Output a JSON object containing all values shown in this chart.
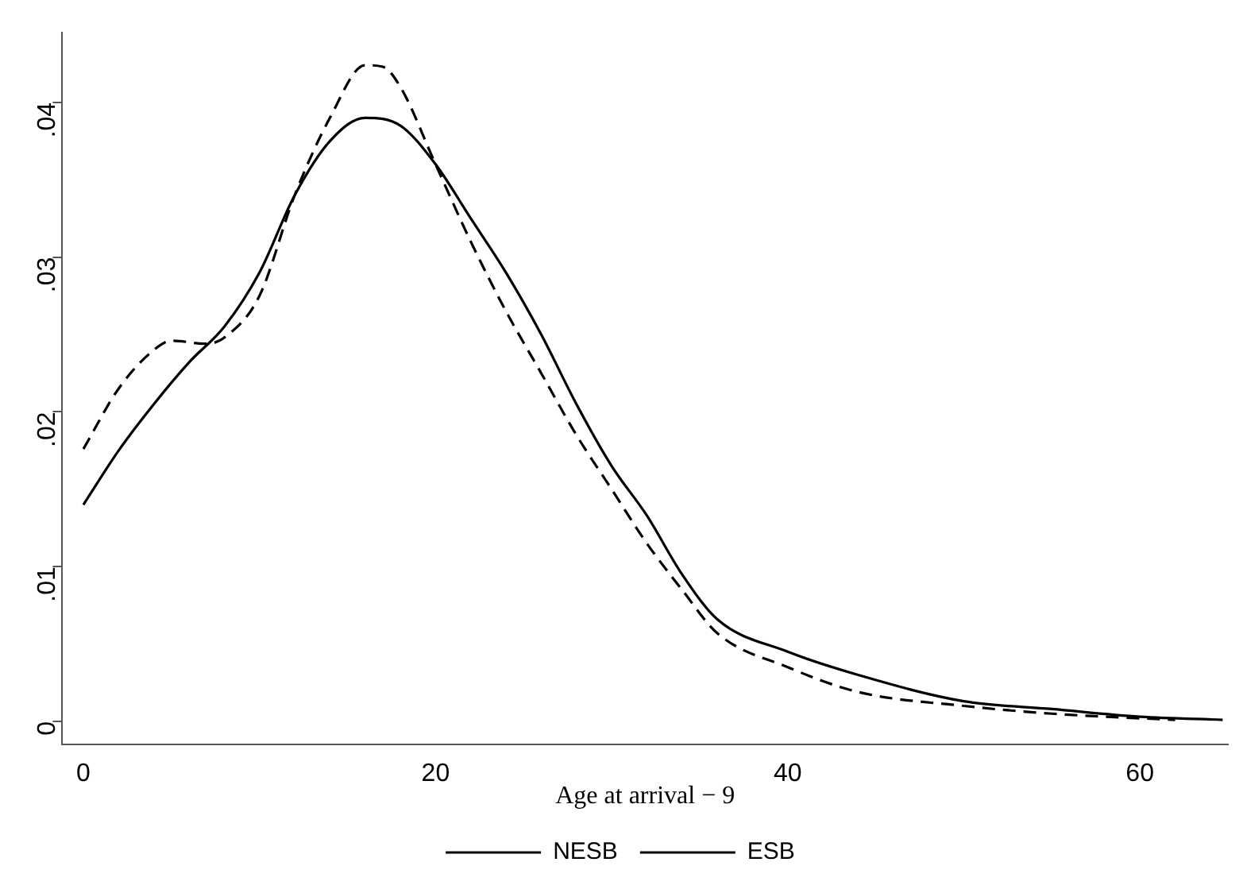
{
  "chart_data": {
    "type": "line",
    "xlabel": "Age at arrival − 9",
    "xlim": [
      -1.2,
      65
    ],
    "xticks": [
      0,
      20,
      40,
      60
    ],
    "ylim": [
      -0.0015,
      0.0445
    ],
    "yticks": [
      {
        "value": 0,
        "label": "0"
      },
      {
        "value": 0.01,
        "label": ".01"
      },
      {
        "value": 0.02,
        "label": ".02"
      },
      {
        "value": 0.03,
        "label": ".03"
      },
      {
        "value": 0.04,
        "label": ".04"
      }
    ],
    "grid": false,
    "legend": "bottom",
    "marker": "none",
    "series": [
      {
        "name": "NESB",
        "color": "#000000",
        "line_style": "solid",
        "x": [
          0,
          2,
          4,
          6,
          8,
          10,
          12,
          14,
          16,
          18,
          20,
          22,
          24,
          26,
          28,
          30,
          32,
          34,
          36,
          40,
          44,
          50,
          55,
          60,
          64.7
        ],
        "values": [
          0.014,
          0.0175,
          0.0205,
          0.0232,
          0.0255,
          0.029,
          0.034,
          0.0375,
          0.039,
          0.0385,
          0.036,
          0.0325,
          0.029,
          0.025,
          0.0205,
          0.0165,
          0.0133,
          0.0095,
          0.0066,
          0.0045,
          0.003,
          0.0013,
          0.0008,
          0.0003,
          0.0001
        ]
      },
      {
        "name": "ESB",
        "color": "#000000",
        "line_style": "dashed",
        "x": [
          0,
          2,
          4,
          5,
          7,
          8,
          10,
          12,
          14,
          16,
          17,
          18,
          20,
          22,
          24,
          26,
          28,
          30,
          32,
          34,
          36,
          40,
          44,
          50,
          55,
          60,
          62
        ],
        "values": [
          0.0176,
          0.0215,
          0.024,
          0.0246,
          0.0244,
          0.0248,
          0.0275,
          0.034,
          0.039,
          0.0424,
          0.0423,
          0.041,
          0.036,
          0.031,
          0.0265,
          0.0225,
          0.0185,
          0.015,
          0.0115,
          0.0085,
          0.0057,
          0.0035,
          0.0019,
          0.001,
          0.0005,
          0.0002,
          0.0001
        ]
      }
    ]
  }
}
